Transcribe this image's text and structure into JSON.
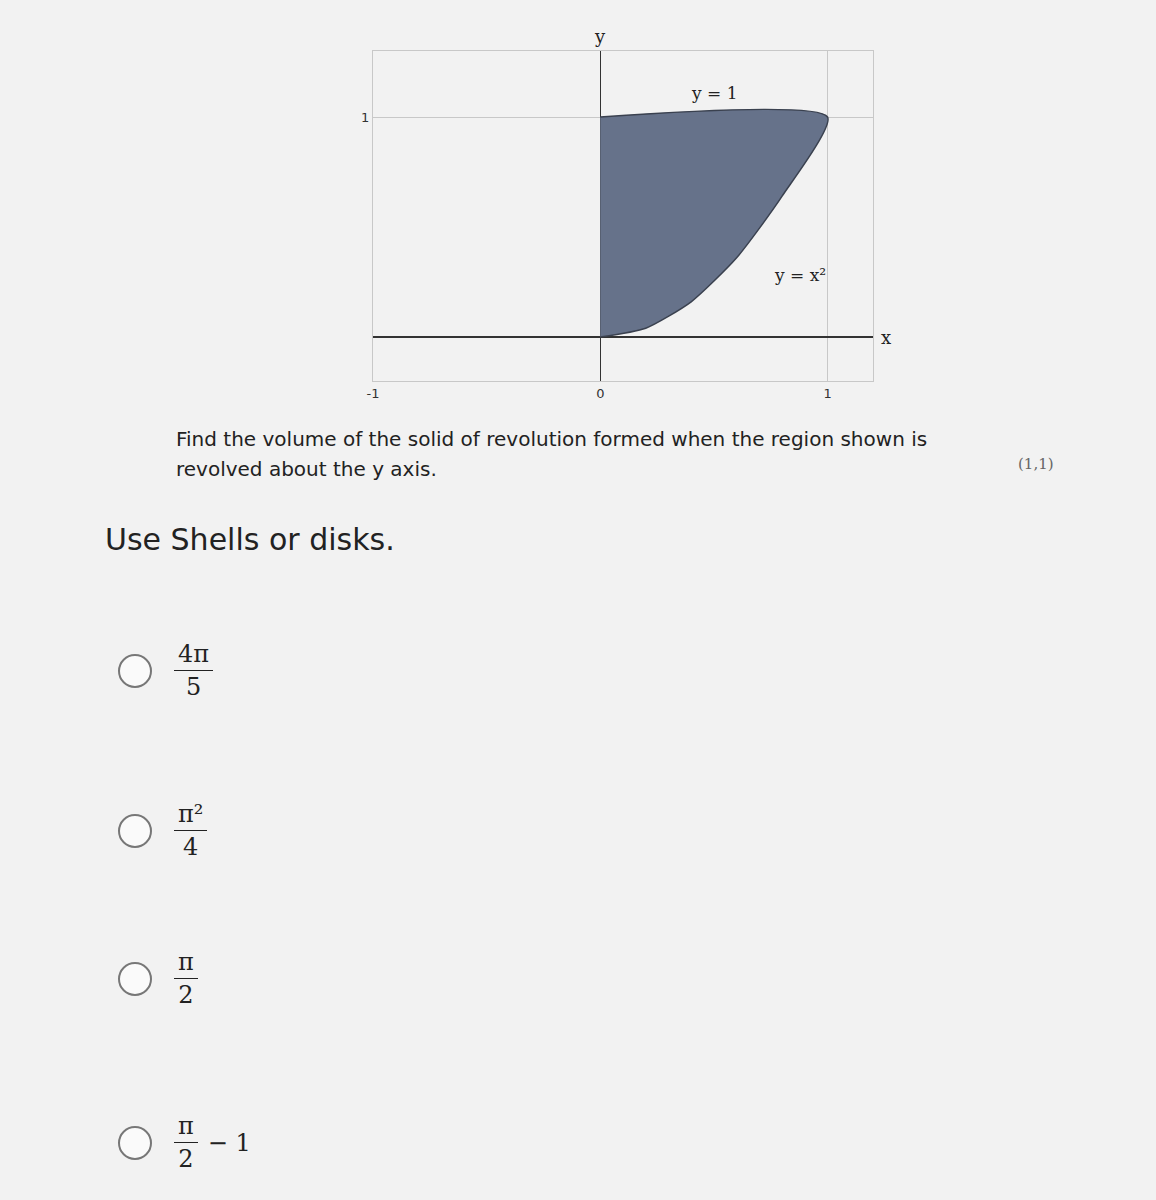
{
  "chart_data": {
    "type": "area",
    "x": [
      0,
      0.2,
      0.4,
      0.6,
      0.8,
      1,
      0
    ],
    "y": [
      0,
      0.04,
      0.16,
      0.36,
      0.64,
      1,
      1
    ],
    "color": "#66728a",
    "xlim": [
      -1,
      1.2
    ],
    "ylim": [
      -0.2,
      1.3
    ],
    "xticks": [
      -1,
      0,
      1
    ],
    "yticks": [
      1
    ],
    "grid": true,
    "x_label": "x",
    "y_label": "y",
    "annotations": [
      {
        "text": "y = 1",
        "x": 0.5,
        "y": 1.11
      },
      {
        "text": "y = x²",
        "x": 0.88,
        "y": 0.28
      }
    ]
  },
  "question": "Find the volume of the solid of revolution formed when the region shown is revolved about the y axis.",
  "note": "(1,1)",
  "instruction": "Use Shells or disks.",
  "options": [
    {
      "numerator": "4π",
      "denominator": "5"
    },
    {
      "numerator": "π²",
      "denominator": "4"
    },
    {
      "numerator": "π",
      "denominator": "2"
    },
    {
      "numerator": "π",
      "denominator": "2",
      "suffix": "− 1"
    }
  ]
}
